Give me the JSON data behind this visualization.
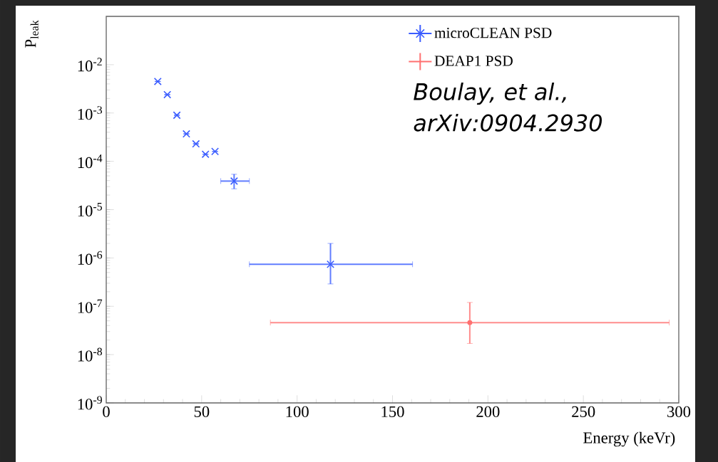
{
  "chart_data": {
    "type": "scatter",
    "xlabel": "Energy (keVr)",
    "ylabel": "P$_{leak}$",
    "annotations": [
      "Boulay, et al.,",
      "arXiv:0904.2930"
    ],
    "series": [
      {
        "name": "microCLEAN PSD",
        "color": "#3a5cff",
        "marker": "cross",
        "x": [
          27,
          32,
          37,
          42,
          47,
          52,
          57,
          67,
          117.5
        ],
        "values": [
          0.0045,
          0.0024,
          0.0009,
          0.00037,
          0.00023,
          0.00014,
          0.00016,
          3.9e-05,
          7.4e-07
        ],
        "errors": [
          null,
          null,
          null,
          null,
          null,
          null,
          null,
          [
            2.7e-05,
            5.4e-05
          ],
          [
            2.9e-07,
            2e-06
          ]
        ],
        "xerrors": [
          null,
          null,
          null,
          null,
          null,
          null,
          null,
          [
            60,
            75
          ],
          [
            75,
            160.5
          ]
        ]
      },
      {
        "name": "DEAP1 PSD",
        "color": "#ff7070",
        "marker": "none",
        "x": [
          190.5
        ],
        "values": [
          4.6e-08
        ],
        "errors": [
          [
            1.7e-08,
            1.2e-07
          ]
        ],
        "xerrors": [
          [
            86,
            295
          ]
        ]
      }
    ],
    "log": "y",
    "legend": "top right",
    "grid": false,
    "xlim": [
      0,
      300
    ],
    "xticks": [
      0,
      50,
      100,
      150,
      200,
      250,
      300
    ],
    "ylim": [
      1e-09,
      0.1
    ],
    "yticks": [
      {
        "value": 1e-09,
        "label": "10$^{-9}$"
      },
      {
        "value": 1e-08,
        "label": "10$^{-8}$"
      },
      {
        "value": 1e-07,
        "label": "10$^{-7}$"
      },
      {
        "value": 1e-06,
        "label": "10$^{-6}$"
      },
      {
        "value": 1e-05,
        "label": "10$^{-5}$"
      },
      {
        "value": 0.0001,
        "label": "10$^{-4}$"
      },
      {
        "value": 0.001,
        "label": "10$^{-3}$"
      },
      {
        "value": 0.01,
        "label": "10$^{-2}$"
      }
    ]
  }
}
